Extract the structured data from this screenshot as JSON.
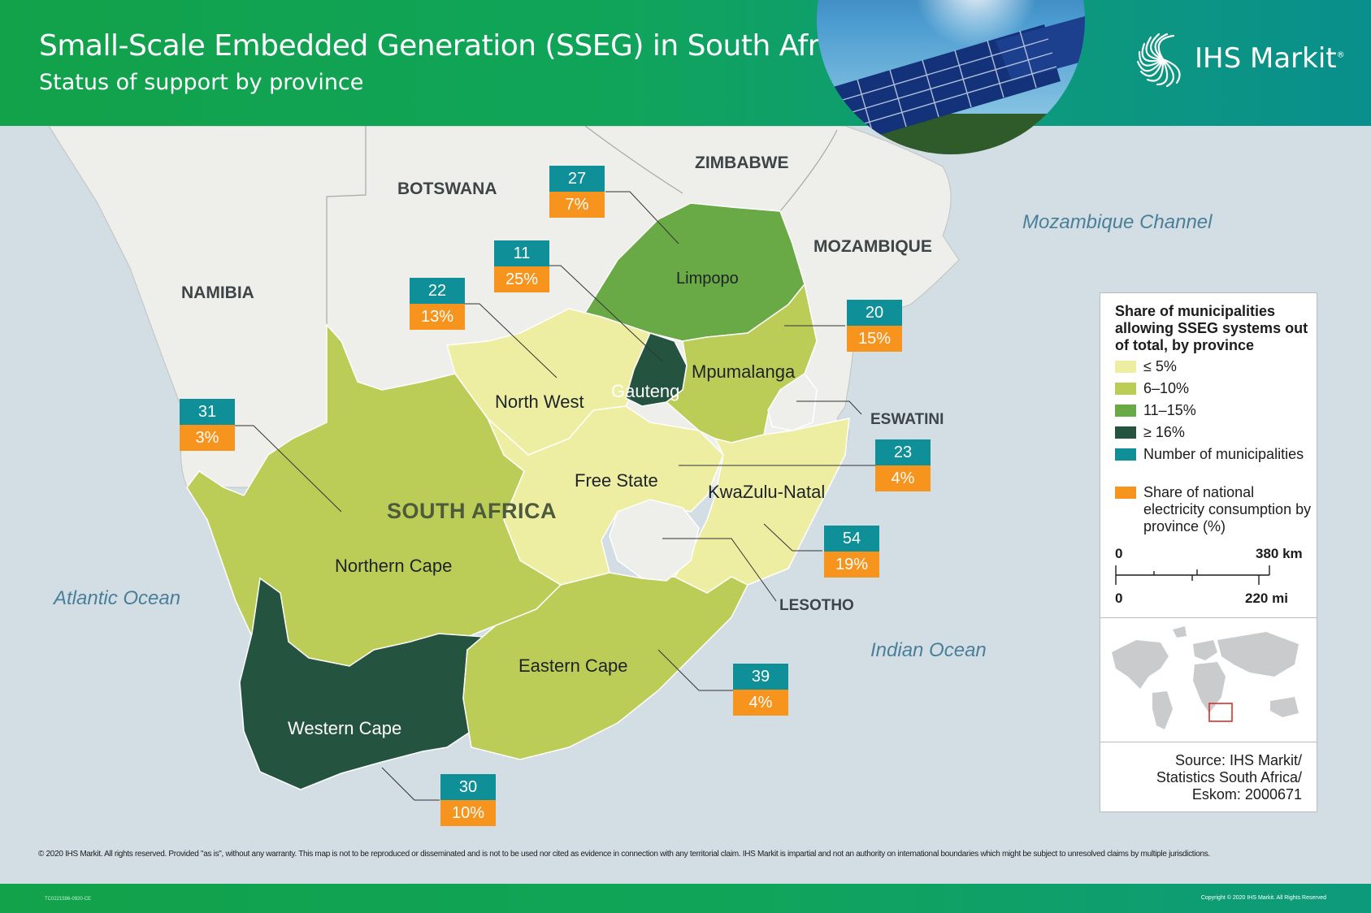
{
  "header": {
    "title": "Small-Scale Embedded Generation (SSEG) in South Africa",
    "subtitle": "Status of support by province",
    "logo": "IHS Markit",
    "logo_mark": "®"
  },
  "countries": {
    "namibia": "NAMIBIA",
    "botswana": "BOTSWANA",
    "zimbabwe": "ZIMBABWE",
    "mozambique": "MOZAMBIQUE",
    "eswatini": "ESWATINI",
    "lesotho": "LESOTHO",
    "south_africa": "SOUTH AFRICA"
  },
  "oceans": {
    "atlantic": "Atlantic Ocean",
    "indian": "Indian Ocean",
    "mozambique_channel": "Mozambique Channel"
  },
  "provinces": [
    {
      "name": "Limpopo",
      "municipalities": "27",
      "consumption_share": "7%",
      "category": "11–15%"
    },
    {
      "name": "Gauteng",
      "municipalities": "11",
      "consumption_share": "25%",
      "category": "≥ 16%"
    },
    {
      "name": "North West",
      "municipalities": "22",
      "consumption_share": "13%",
      "category": "≤ 5%"
    },
    {
      "name": "Mpumalanga",
      "municipalities": "20",
      "consumption_share": "15%",
      "category": "6–10%"
    },
    {
      "name": "Northern Cape",
      "municipalities": "31",
      "consumption_share": "3%",
      "category": "6–10%"
    },
    {
      "name": "Free State",
      "municipalities": "23",
      "consumption_share": "4%",
      "category": "≤ 5%"
    },
    {
      "name": "KwaZulu-Natal",
      "municipalities": "54",
      "consumption_share": "19%",
      "category": "≤ 5%"
    },
    {
      "name": "Eastern Cape",
      "municipalities": "39",
      "consumption_share": "4%",
      "category": "6–10%"
    },
    {
      "name": "Western Cape",
      "municipalities": "30",
      "consumption_share": "10%",
      "category": "≥ 16%"
    }
  ],
  "legend": {
    "title": "Share of municipalities allowing SSEG systems out of total, by province",
    "items": [
      {
        "label": "≤ 5%",
        "color": "#eeeea3"
      },
      {
        "label": "6–10%",
        "color": "#bccd57"
      },
      {
        "label": "11–15%",
        "color": "#6aaa46"
      },
      {
        "label": "≥ 16%",
        "color": "#24543f"
      },
      {
        "label": "Number of municipalities",
        "color": "#0f8f98"
      },
      {
        "label": "Share of national electricity consumption by province (%)",
        "color": "#f7941d"
      }
    ],
    "scale": {
      "km_zero": "0",
      "km_label": "380 km",
      "mi_zero": "0",
      "mi_label": "220 mi"
    },
    "source": "Source: IHS Markit/ Statistics South Africa/ Eskom: 2000671"
  },
  "disclaimer": "© 2020 IHS Markit. All rights reserved. Provided \"as is\", without any warranty. This map is not to be reproduced or disseminated and is not to be used nor cited as evidence in connection with any territorial claim. IHS Markit is impartial and not an authority on international boundaries which might be subject to unresolved claims by multiple jurisdictions.",
  "footer": {
    "code": "TC0221596-0920-CE",
    "copyright": "Copyright © 2020 IHS Markit. All Rights Reserved"
  },
  "colors": {
    "header_green": "#12a24a",
    "header_teal": "#0a8f8c",
    "ocean": "#d3dee4",
    "land": "#eeeeea",
    "count_box": "#0f8f98",
    "share_box": "#f7941d"
  }
}
